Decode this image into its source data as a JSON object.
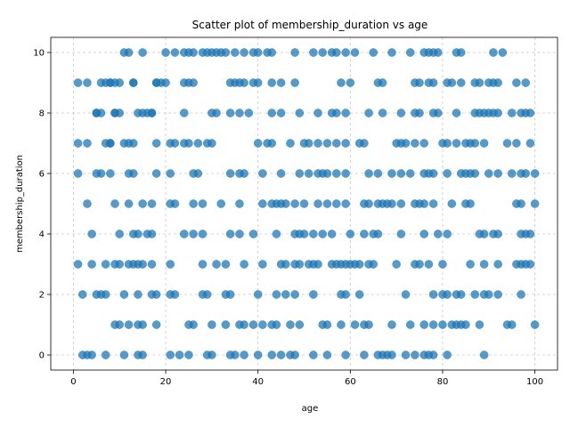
{
  "chart_data": {
    "type": "scatter",
    "title": "Scatter plot of membership_duration vs age",
    "xlabel": "age",
    "ylabel": "membership_duration",
    "xlim": [
      -4.9,
      104.9
    ],
    "ylim": [
      -0.5,
      10.5
    ],
    "xticks": [
      0,
      20,
      40,
      60,
      80,
      100
    ],
    "yticks": [
      0,
      2,
      4,
      6,
      8,
      10
    ],
    "grid": true,
    "legend": "none",
    "marker_color": "#1f77b4",
    "marker_alpha": 0.75,
    "points": [
      [
        1,
        9
      ],
      [
        5,
        8
      ],
      [
        6,
        8
      ],
      [
        7,
        9
      ],
      [
        8,
        9
      ],
      [
        8,
        7
      ],
      [
        9,
        8
      ],
      [
        10,
        9
      ],
      [
        11,
        10
      ],
      [
        12,
        10
      ],
      [
        13,
        9
      ],
      [
        15,
        10
      ],
      [
        17,
        8
      ],
      [
        18,
        9
      ],
      [
        20,
        10
      ],
      [
        22,
        10
      ],
      [
        24,
        10
      ],
      [
        25,
        10
      ],
      [
        26,
        10
      ],
      [
        28,
        10
      ],
      [
        29,
        10
      ],
      [
        30,
        10
      ],
      [
        31,
        10
      ],
      [
        32,
        10
      ],
      [
        33,
        10
      ],
      [
        35,
        10
      ],
      [
        37,
        10
      ],
      [
        39,
        10
      ],
      [
        40,
        10
      ],
      [
        42,
        10
      ],
      [
        43,
        10
      ],
      [
        48,
        10
      ],
      [
        52,
        10
      ],
      [
        54,
        10
      ],
      [
        56,
        10
      ],
      [
        57,
        10
      ],
      [
        59,
        10
      ],
      [
        61,
        10
      ],
      [
        65,
        10
      ],
      [
        69,
        10
      ],
      [
        73,
        10
      ],
      [
        76,
        10
      ],
      [
        77,
        10
      ],
      [
        78,
        10
      ],
      [
        79,
        10
      ],
      [
        83,
        10
      ],
      [
        84,
        10
      ],
      [
        91,
        10
      ],
      [
        93,
        10
      ],
      [
        3,
        9
      ],
      [
        6,
        9
      ],
      [
        8,
        9
      ],
      [
        9,
        9
      ],
      [
        13,
        9
      ],
      [
        18,
        9
      ],
      [
        19,
        9
      ],
      [
        20,
        9
      ],
      [
        24,
        9
      ],
      [
        25,
        9
      ],
      [
        26,
        9
      ],
      [
        34,
        9
      ],
      [
        35,
        9
      ],
      [
        36,
        9
      ],
      [
        37,
        9
      ],
      [
        39,
        9
      ],
      [
        40,
        9
      ],
      [
        43,
        9
      ],
      [
        45,
        9
      ],
      [
        48,
        9
      ],
      [
        58,
        9
      ],
      [
        60,
        9
      ],
      [
        66,
        9
      ],
      [
        67,
        9
      ],
      [
        74,
        9
      ],
      [
        75,
        9
      ],
      [
        77,
        9
      ],
      [
        78,
        9
      ],
      [
        81,
        9
      ],
      [
        82,
        9
      ],
      [
        84,
        9
      ],
      [
        87,
        9
      ],
      [
        88,
        9
      ],
      [
        90,
        9
      ],
      [
        91,
        9
      ],
      [
        92,
        9
      ],
      [
        96,
        9
      ],
      [
        98,
        9
      ],
      [
        5,
        8
      ],
      [
        9,
        8
      ],
      [
        10,
        8
      ],
      [
        14,
        8
      ],
      [
        15,
        8
      ],
      [
        16,
        8
      ],
      [
        17,
        8
      ],
      [
        24,
        8
      ],
      [
        30,
        8
      ],
      [
        31,
        8
      ],
      [
        34,
        8
      ],
      [
        36,
        8
      ],
      [
        38,
        8
      ],
      [
        43,
        8
      ],
      [
        45,
        8
      ],
      [
        49,
        8
      ],
      [
        53,
        8
      ],
      [
        56,
        8
      ],
      [
        57,
        8
      ],
      [
        59,
        8
      ],
      [
        64,
        8
      ],
      [
        67,
        8
      ],
      [
        71,
        8
      ],
      [
        74,
        8
      ],
      [
        75,
        8
      ],
      [
        78,
        8
      ],
      [
        79,
        8
      ],
      [
        83,
        8
      ],
      [
        87,
        8
      ],
      [
        88,
        8
      ],
      [
        89,
        8
      ],
      [
        90,
        8
      ],
      [
        91,
        8
      ],
      [
        92,
        8
      ],
      [
        95,
        8
      ],
      [
        97,
        8
      ],
      [
        98,
        8
      ],
      [
        99,
        8
      ],
      [
        1,
        7
      ],
      [
        3,
        7
      ],
      [
        7,
        7
      ],
      [
        8,
        7
      ],
      [
        11,
        7
      ],
      [
        12,
        7
      ],
      [
        13,
        7
      ],
      [
        18,
        7
      ],
      [
        21,
        7
      ],
      [
        22,
        7
      ],
      [
        24,
        7
      ],
      [
        25,
        7
      ],
      [
        27,
        7
      ],
      [
        29,
        7
      ],
      [
        30,
        7
      ],
      [
        40,
        7
      ],
      [
        42,
        7
      ],
      [
        43,
        7
      ],
      [
        47,
        7
      ],
      [
        50,
        7
      ],
      [
        51,
        7
      ],
      [
        53,
        7
      ],
      [
        55,
        7
      ],
      [
        57,
        7
      ],
      [
        59,
        7
      ],
      [
        62,
        7
      ],
      [
        63,
        7
      ],
      [
        70,
        7
      ],
      [
        71,
        7
      ],
      [
        72,
        7
      ],
      [
        74,
        7
      ],
      [
        76,
        7
      ],
      [
        80,
        7
      ],
      [
        81,
        7
      ],
      [
        83,
        7
      ],
      [
        85,
        7
      ],
      [
        86,
        7
      ],
      [
        87,
        7
      ],
      [
        89,
        7
      ],
      [
        94,
        7
      ],
      [
        96,
        7
      ],
      [
        99,
        7
      ],
      [
        1,
        6
      ],
      [
        5,
        6
      ],
      [
        6,
        6
      ],
      [
        8,
        6
      ],
      [
        12,
        6
      ],
      [
        13,
        6
      ],
      [
        18,
        6
      ],
      [
        21,
        6
      ],
      [
        26,
        6
      ],
      [
        27,
        6
      ],
      [
        34,
        6
      ],
      [
        36,
        6
      ],
      [
        37,
        6
      ],
      [
        41,
        6
      ],
      [
        45,
        6
      ],
      [
        49,
        6
      ],
      [
        51,
        6
      ],
      [
        53,
        6
      ],
      [
        54,
        6
      ],
      [
        55,
        6
      ],
      [
        57,
        6
      ],
      [
        59,
        6
      ],
      [
        64,
        6
      ],
      [
        66,
        6
      ],
      [
        69,
        6
      ],
      [
        71,
        6
      ],
      [
        73,
        6
      ],
      [
        76,
        6
      ],
      [
        77,
        6
      ],
      [
        78,
        6
      ],
      [
        81,
        6
      ],
      [
        84,
        6
      ],
      [
        85,
        6
      ],
      [
        86,
        6
      ],
      [
        87,
        6
      ],
      [
        90,
        6
      ],
      [
        92,
        6
      ],
      [
        95,
        6
      ],
      [
        97,
        6
      ],
      [
        98,
        6
      ],
      [
        100,
        6
      ],
      [
        3,
        5
      ],
      [
        9,
        5
      ],
      [
        12,
        5
      ],
      [
        15,
        5
      ],
      [
        17,
        5
      ],
      [
        21,
        5
      ],
      [
        22,
        5
      ],
      [
        26,
        5
      ],
      [
        28,
        5
      ],
      [
        32,
        5
      ],
      [
        36,
        5
      ],
      [
        41,
        5
      ],
      [
        43,
        5
      ],
      [
        44,
        5
      ],
      [
        45,
        5
      ],
      [
        46,
        5
      ],
      [
        48,
        5
      ],
      [
        50,
        5
      ],
      [
        53,
        5
      ],
      [
        55,
        5
      ],
      [
        57,
        5
      ],
      [
        59,
        5
      ],
      [
        63,
        5
      ],
      [
        64,
        5
      ],
      [
        66,
        5
      ],
      [
        67,
        5
      ],
      [
        68,
        5
      ],
      [
        69,
        5
      ],
      [
        71,
        5
      ],
      [
        74,
        5
      ],
      [
        75,
        5
      ],
      [
        76,
        5
      ],
      [
        78,
        5
      ],
      [
        82,
        5
      ],
      [
        85,
        5
      ],
      [
        86,
        5
      ],
      [
        96,
        5
      ],
      [
        97,
        5
      ],
      [
        100,
        5
      ],
      [
        4,
        4
      ],
      [
        10,
        4
      ],
      [
        13,
        4
      ],
      [
        14,
        4
      ],
      [
        16,
        4
      ],
      [
        17,
        4
      ],
      [
        24,
        4
      ],
      [
        26,
        4
      ],
      [
        28,
        4
      ],
      [
        34,
        4
      ],
      [
        36,
        4
      ],
      [
        39,
        4
      ],
      [
        44,
        4
      ],
      [
        48,
        4
      ],
      [
        49,
        4
      ],
      [
        50,
        4
      ],
      [
        52,
        4
      ],
      [
        54,
        4
      ],
      [
        56,
        4
      ],
      [
        60,
        4
      ],
      [
        63,
        4
      ],
      [
        65,
        4
      ],
      [
        66,
        4
      ],
      [
        71,
        4
      ],
      [
        76,
        4
      ],
      [
        79,
        4
      ],
      [
        81,
        4
      ],
      [
        88,
        4
      ],
      [
        89,
        4
      ],
      [
        91,
        4
      ],
      [
        92,
        4
      ],
      [
        97,
        4
      ],
      [
        98,
        4
      ],
      [
        99,
        4
      ],
      [
        1,
        3
      ],
      [
        4,
        3
      ],
      [
        7,
        3
      ],
      [
        9,
        3
      ],
      [
        10,
        3
      ],
      [
        12,
        3
      ],
      [
        13,
        3
      ],
      [
        14,
        3
      ],
      [
        15,
        3
      ],
      [
        17,
        3
      ],
      [
        21,
        3
      ],
      [
        28,
        3
      ],
      [
        31,
        3
      ],
      [
        33,
        3
      ],
      [
        37,
        3
      ],
      [
        41,
        3
      ],
      [
        45,
        3
      ],
      [
        46,
        3
      ],
      [
        48,
        3
      ],
      [
        49,
        3
      ],
      [
        51,
        3
      ],
      [
        52,
        3
      ],
      [
        53,
        3
      ],
      [
        56,
        3
      ],
      [
        57,
        3
      ],
      [
        58,
        3
      ],
      [
        59,
        3
      ],
      [
        60,
        3
      ],
      [
        61,
        3
      ],
      [
        62,
        3
      ],
      [
        64,
        3
      ],
      [
        65,
        3
      ],
      [
        70,
        3
      ],
      [
        74,
        3
      ],
      [
        75,
        3
      ],
      [
        77,
        3
      ],
      [
        80,
        3
      ],
      [
        86,
        3
      ],
      [
        89,
        3
      ],
      [
        92,
        3
      ],
      [
        96,
        3
      ],
      [
        97,
        3
      ],
      [
        98,
        3
      ],
      [
        99,
        3
      ],
      [
        2,
        2
      ],
      [
        5,
        2
      ],
      [
        6,
        2
      ],
      [
        7,
        2
      ],
      [
        11,
        2
      ],
      [
        14,
        2
      ],
      [
        17,
        2
      ],
      [
        18,
        2
      ],
      [
        21,
        2
      ],
      [
        22,
        2
      ],
      [
        28,
        2
      ],
      [
        29,
        2
      ],
      [
        33,
        2
      ],
      [
        34,
        2
      ],
      [
        40,
        2
      ],
      [
        44,
        2
      ],
      [
        46,
        2
      ],
      [
        48,
        2
      ],
      [
        52,
        2
      ],
      [
        58,
        2
      ],
      [
        59,
        2
      ],
      [
        62,
        2
      ],
      [
        72,
        2
      ],
      [
        78,
        2
      ],
      [
        80,
        2
      ],
      [
        81,
        2
      ],
      [
        83,
        2
      ],
      [
        84,
        2
      ],
      [
        87,
        2
      ],
      [
        89,
        2
      ],
      [
        90,
        2
      ],
      [
        92,
        2
      ],
      [
        97,
        2
      ],
      [
        9,
        1
      ],
      [
        10,
        1
      ],
      [
        12,
        1
      ],
      [
        14,
        1
      ],
      [
        15,
        1
      ],
      [
        18,
        1
      ],
      [
        25,
        1
      ],
      [
        26,
        1
      ],
      [
        30,
        1
      ],
      [
        33,
        1
      ],
      [
        36,
        1
      ],
      [
        37,
        1
      ],
      [
        39,
        1
      ],
      [
        41,
        1
      ],
      [
        43,
        1
      ],
      [
        44,
        1
      ],
      [
        47,
        1
      ],
      [
        49,
        1
      ],
      [
        54,
        1
      ],
      [
        55,
        1
      ],
      [
        58,
        1
      ],
      [
        61,
        1
      ],
      [
        63,
        1
      ],
      [
        64,
        1
      ],
      [
        69,
        1
      ],
      [
        73,
        1
      ],
      [
        76,
        1
      ],
      [
        78,
        1
      ],
      [
        80,
        1
      ],
      [
        82,
        1
      ],
      [
        83,
        1
      ],
      [
        84,
        1
      ],
      [
        85,
        1
      ],
      [
        88,
        1
      ],
      [
        94,
        1
      ],
      [
        95,
        1
      ],
      [
        100,
        1
      ],
      [
        2,
        0
      ],
      [
        3,
        0
      ],
      [
        4,
        0
      ],
      [
        7,
        0
      ],
      [
        11,
        0
      ],
      [
        14,
        0
      ],
      [
        15,
        0
      ],
      [
        21,
        0
      ],
      [
        23,
        0
      ],
      [
        25,
        0
      ],
      [
        29,
        0
      ],
      [
        30,
        0
      ],
      [
        34,
        0
      ],
      [
        35,
        0
      ],
      [
        37,
        0
      ],
      [
        40,
        0
      ],
      [
        43,
        0
      ],
      [
        45,
        0
      ],
      [
        47,
        0
      ],
      [
        48,
        0
      ],
      [
        52,
        0
      ],
      [
        55,
        0
      ],
      [
        59,
        0
      ],
      [
        63,
        0
      ],
      [
        66,
        0
      ],
      [
        67,
        0
      ],
      [
        68,
        0
      ],
      [
        69,
        0
      ],
      [
        72,
        0
      ],
      [
        74,
        0
      ],
      [
        76,
        0
      ],
      [
        77,
        0
      ],
      [
        78,
        0
      ],
      [
        81,
        0
      ],
      [
        89,
        0
      ]
    ]
  }
}
